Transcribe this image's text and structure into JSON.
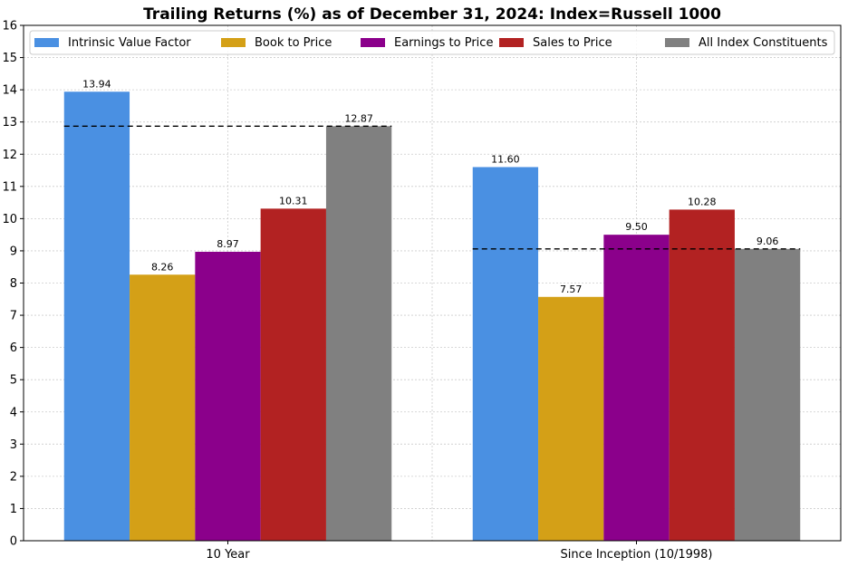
{
  "chart_data": {
    "type": "bar",
    "title": "Trailing Returns (%) as of December 31, 2024: Index=Russell 1000",
    "xlabel": "",
    "ylabel": "",
    "ylim": [
      0,
      16
    ],
    "y_ticks": [
      0,
      1,
      2,
      3,
      4,
      5,
      6,
      7,
      8,
      9,
      10,
      11,
      12,
      13,
      14,
      15,
      16
    ],
    "grid": true,
    "legend_position": "top",
    "categories": [
      "10 Year",
      "Since Inception (10/1998)"
    ],
    "series": [
      {
        "name": "Intrinsic Value Factor",
        "color": "#4a90e2",
        "values": [
          13.94,
          11.6
        ],
        "labels": [
          "13.94",
          "11.60"
        ]
      },
      {
        "name": "Book to Price",
        "color": "#d4a017",
        "values": [
          8.26,
          7.57
        ],
        "labels": [
          "8.26",
          "7.57"
        ]
      },
      {
        "name": "Earnings to Price",
        "color": "#8b008b",
        "values": [
          8.97,
          9.5
        ],
        "labels": [
          "8.97",
          "9.50"
        ]
      },
      {
        "name": "Sales to Price",
        "color": "#b22222",
        "values": [
          10.31,
          10.28
        ],
        "labels": [
          "10.31",
          "10.28"
        ]
      },
      {
        "name": "All Index Constituents",
        "color": "#808080",
        "values": [
          12.87,
          9.06
        ],
        "labels": [
          "12.87",
          "9.06"
        ]
      }
    ],
    "reference_lines": [
      {
        "category": "10 Year",
        "value": 12.87,
        "style": "dashed"
      },
      {
        "category": "Since Inception (10/1998)",
        "value": 9.06,
        "style": "dashed"
      }
    ]
  }
}
